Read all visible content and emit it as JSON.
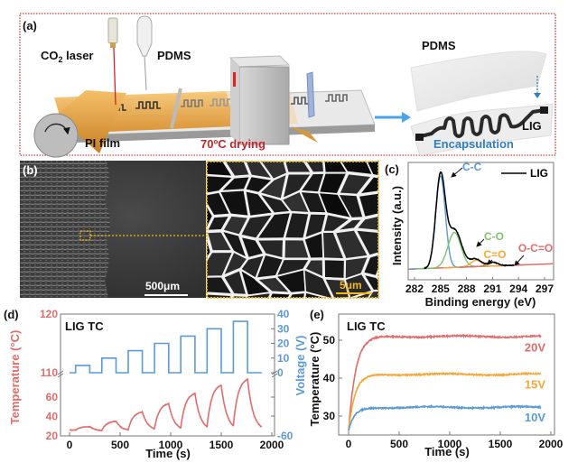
{
  "panel_a": {
    "label": "(a)",
    "laser_co": "CO",
    "laser_sub": "2",
    "laser_rest": " laser",
    "pdms_dispenser": "PDMS",
    "pi_film": "PI film",
    "drying": "70ºC drying",
    "pdms_layer": "PDMS",
    "lig": "LIG",
    "encapsulation": "Encapsulation",
    "colors": {
      "frame": "#d23a3a",
      "drying": "#c0272d",
      "encapsulation": "#2f7fc1",
      "film": "#f2b45a"
    }
  },
  "panel_b": {
    "label": "(b)",
    "scale_left": "500μm",
    "scale_right": "5μm",
    "colors": {
      "zoom_box": "#f2b822"
    }
  },
  "chart_data": [
    {
      "id": "c",
      "type": "line",
      "panel_label": "(c)",
      "xlabel": "Binding energy (eV)",
      "ylabel": "Intensity (a.u.)",
      "xlim": [
        281.3,
        298
      ],
      "xticks": [
        282,
        285,
        288,
        291,
        294,
        297
      ],
      "legend": {
        "entries": [
          "LIG"
        ],
        "placement": "top-right"
      },
      "components": [
        {
          "name": "C-C",
          "center": 285.0,
          "amplitude": 1.0,
          "width": 0.55,
          "color": "#5b9bd5"
        },
        {
          "name": "C-O",
          "center": 286.6,
          "amplitude": 0.38,
          "width": 0.75,
          "color": "#7cc46a"
        },
        {
          "name": "C=O",
          "center": 289.1,
          "amplitude": 0.07,
          "width": 0.6,
          "color": "#f5a83a"
        },
        {
          "name": "O-C=O",
          "center": 291.0,
          "amplitude": 0.04,
          "width": 0.6,
          "color": "#e06c6c"
        }
      ],
      "envelope_color": "#000000"
    },
    {
      "id": "d",
      "type": "line",
      "panel_label": "(d)",
      "title": "LIG TC",
      "xlabel": "Time (s)",
      "ylabel_left": "Temperature (°C)",
      "ylabel_right": "Voltage (V)",
      "xlim": [
        0,
        2000
      ],
      "xticks": [
        0,
        500,
        1000,
        1500,
        2000
      ],
      "yticks_left_lower": [
        20,
        40,
        60
      ],
      "yticks_left_upper": [
        110,
        120
      ],
      "yticks_right_upper": [
        0,
        10,
        20,
        30,
        40
      ],
      "yticks_right_lower": [
        -60
      ],
      "end_time": 1900,
      "ambient": 25,
      "pulses": [
        {
          "start": 60,
          "end": 200,
          "voltage": 5,
          "peak_temp": 29.5
        },
        {
          "start": 320,
          "end": 460,
          "voltage": 10,
          "peak_temp": 35
        },
        {
          "start": 580,
          "end": 720,
          "voltage": 15,
          "peak_temp": 44.5
        },
        {
          "start": 840,
          "end": 980,
          "voltage": 20,
          "peak_temp": 53
        },
        {
          "start": 1100,
          "end": 1240,
          "voltage": 25,
          "peak_temp": 63.5
        },
        {
          "start": 1360,
          "end": 1500,
          "voltage": 30,
          "peak_temp": 72
        },
        {
          "start": 1620,
          "end": 1760,
          "voltage": 35,
          "peak_temp": 78
        }
      ],
      "colors": {
        "temperature": "#e06c6c",
        "voltage": "#5b9bd5"
      }
    },
    {
      "id": "e",
      "type": "line",
      "panel_label": "(e)",
      "title": "LIG TC",
      "xlabel": "Time (s)",
      "ylabel": "Temperature (°C)",
      "xlim": [
        0,
        2000
      ],
      "ylim": [
        25,
        57
      ],
      "xticks": [
        0,
        500,
        1000,
        1500,
        2000
      ],
      "yticks": [
        30,
        40,
        50
      ],
      "start_temp": 26,
      "end_time": 1900,
      "series": [
        {
          "name": "20V",
          "steady_temp": 51,
          "tau": 70,
          "color": "#e06c6c"
        },
        {
          "name": "15V",
          "steady_temp": 41,
          "tau": 65,
          "color": "#f5a83a"
        },
        {
          "name": "10V",
          "steady_temp": 32.3,
          "tau": 60,
          "color": "#5b9bd5"
        }
      ]
    }
  ]
}
